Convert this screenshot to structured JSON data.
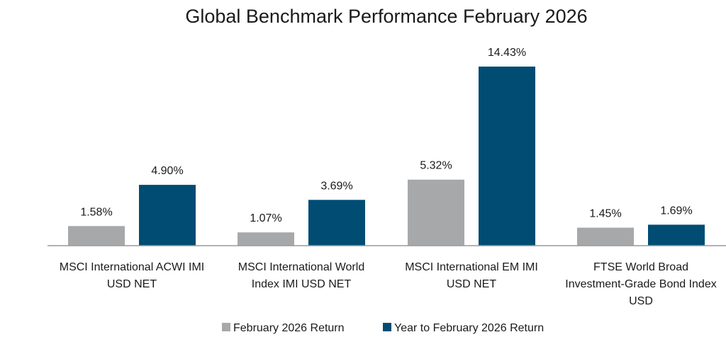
{
  "chart_data": {
    "type": "bar",
    "title": "Global Benchmark Performance February 2026",
    "categories": [
      [
        "MSCI International ACWI IMI",
        "USD NET"
      ],
      [
        "MSCI International World",
        "Index IMI USD NET"
      ],
      [
        "MSCI International EM IMI",
        "USD NET"
      ],
      [
        "FTSE World Broad",
        "Investment-Grade Bond Index",
        "USD"
      ]
    ],
    "series": [
      {
        "name": "February 2026 Return",
        "color": "#a7a8aa",
        "values": [
          1.58,
          1.07,
          5.32,
          1.45
        ],
        "labels": [
          "1.58%",
          "1.07%",
          "5.32%",
          "1.45%"
        ]
      },
      {
        "name": "Year to February 2026 Return",
        "color": "#004c73",
        "values": [
          4.9,
          3.69,
          14.43,
          1.69
        ],
        "labels": [
          "4.90%",
          "3.69%",
          "14.43%",
          "1.69%"
        ]
      }
    ],
    "ylim": [
      0,
      15
    ],
    "grid": false,
    "legend": "bottom-center",
    "axis_color": "#9a9a9a"
  }
}
